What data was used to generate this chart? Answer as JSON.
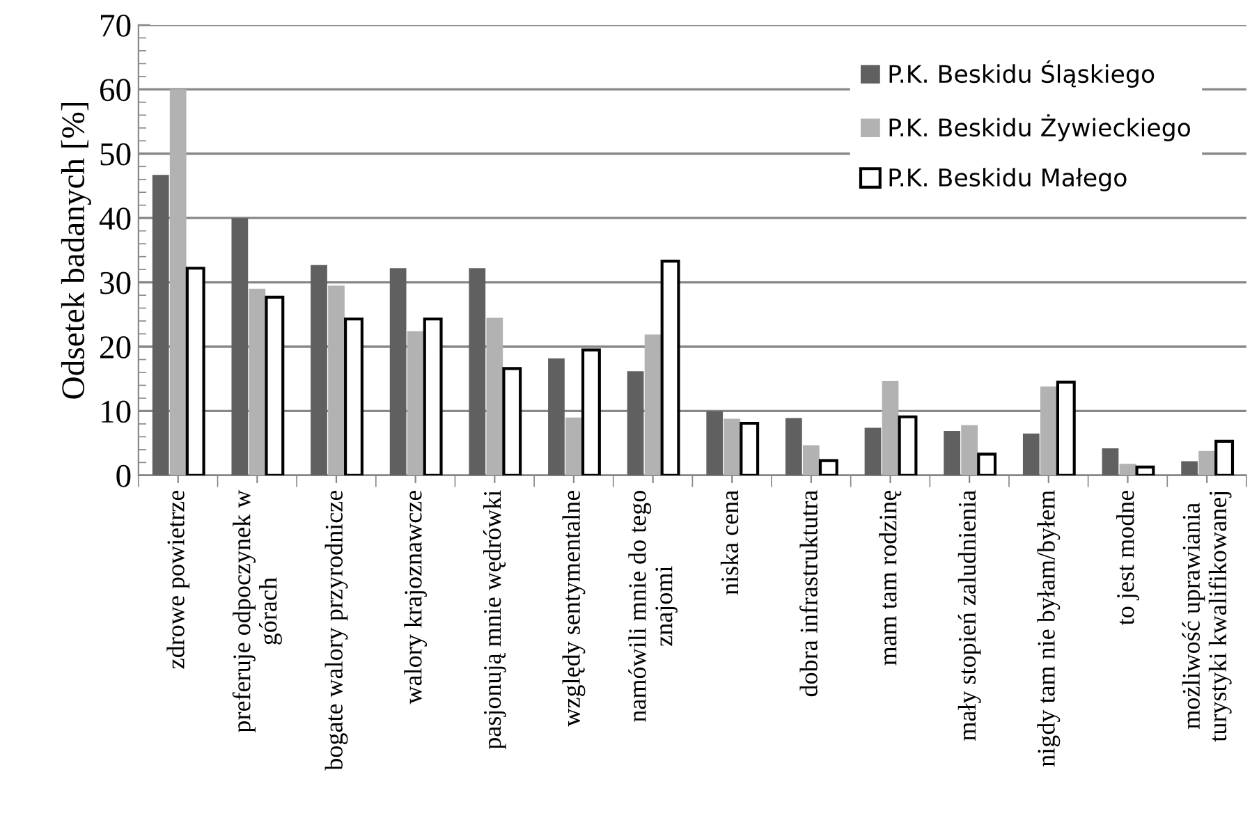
{
  "chart_data": {
    "type": "bar",
    "ylabel": "Odsetek badanych [%]",
    "categories": [
      "zdrowe powietrze",
      "preferuje odpoczynek w\ngórach",
      "bogate walory przyrodnicze",
      "walory krajoznawcze",
      "pasjonują mnie wędrówki",
      "względy sentymentalne",
      "namówili mnie do tego\nznajomi",
      "niska cena",
      "dobra infrastruktutra",
      "mam tam rodzinę",
      "mały stopień zaludnienia",
      "nigdy tam nie byłam/byłem",
      "to jest modne",
      "możliwość uprawiania\nturystyki kwalifikowanej"
    ],
    "series": [
      {
        "name": "P.K. Beskidu Śląskiego",
        "color": "#606060",
        "values": [
          46.7,
          40,
          32.7,
          32.2,
          32.2,
          18.2,
          16.2,
          10,
          8.9,
          7.4,
          6.9,
          6.5,
          4.2,
          2.2
        ]
      },
      {
        "name": "P.K. Beskidu Żywieckiego",
        "color": "#b2b2b2",
        "values": [
          60,
          29,
          29.5,
          22.4,
          24.5,
          9,
          21.9,
          8.8,
          4.7,
          14.7,
          7.8,
          13.8,
          1.8,
          3.8
        ]
      },
      {
        "name": "P.K. Beskidu Małego",
        "color": "#ffffff",
        "values": [
          32.2,
          27.7,
          24.3,
          24.3,
          16.6,
          19.5,
          33.3,
          8.1,
          2.3,
          9.1,
          3.3,
          14.5,
          1.3,
          5.3
        ]
      }
    ],
    "ylim": [
      0,
      70
    ],
    "yticks": [
      0,
      10,
      20,
      30,
      40,
      50,
      60,
      70
    ],
    "grid": "y",
    "legend": "top right"
  }
}
